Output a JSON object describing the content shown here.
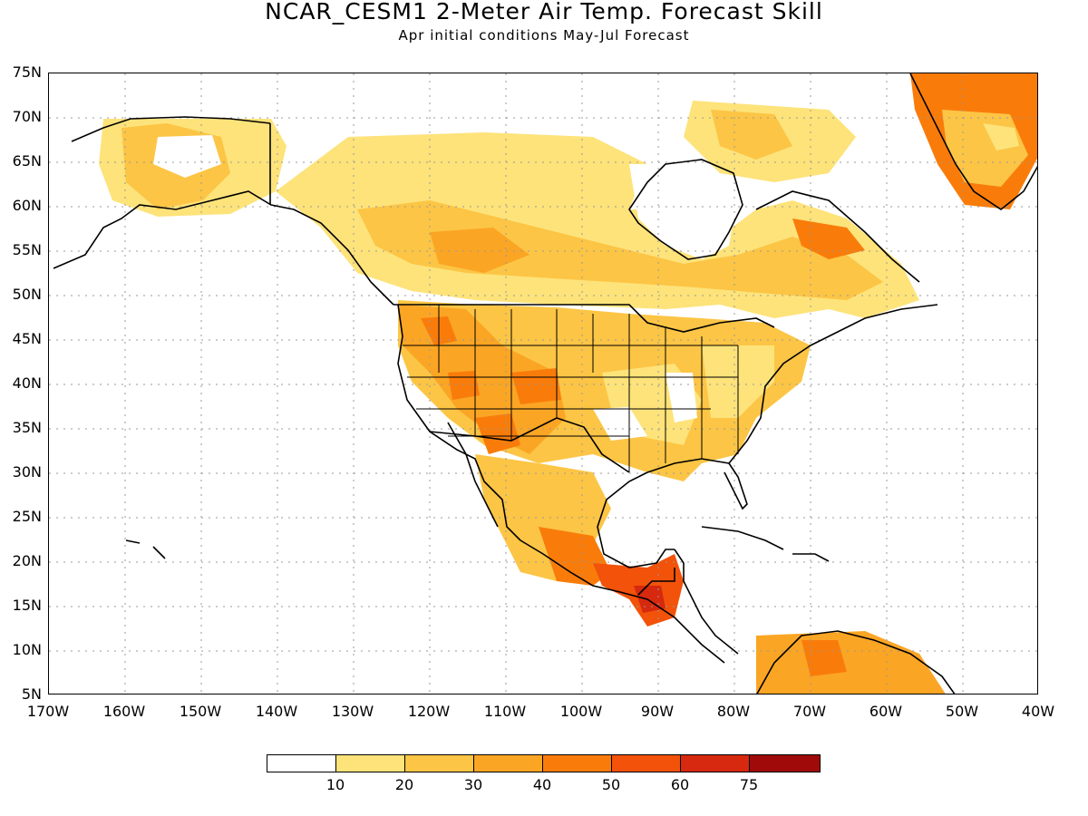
{
  "title": "NCAR_CESM1 2-Meter Air Temp. Forecast Skill",
  "subtitle": "Apr initial conditions  May-Jul Forecast",
  "lat_labels": [
    "75N",
    "70N",
    "65N",
    "60N",
    "55N",
    "50N",
    "45N",
    "40N",
    "35N",
    "30N",
    "25N",
    "20N",
    "15N",
    "10N",
    "5N"
  ],
  "lon_labels": [
    "170W",
    "160W",
    "150W",
    "140W",
    "130W",
    "120W",
    "110W",
    "100W",
    "90W",
    "80W",
    "70W",
    "60W",
    "50W",
    "40W"
  ],
  "colorbar": {
    "levels": [
      "10",
      "20",
      "30",
      "40",
      "50",
      "60",
      "75"
    ],
    "colors": [
      "#ffffff",
      "#fde37a",
      "#fcc545",
      "#fba524",
      "#f97c0b",
      "#f2520a",
      "#d6290f",
      "#a00a09"
    ]
  },
  "colors": {
    "coastline": "#000000",
    "gridline": "#999999",
    "background": "#ffffff"
  }
}
